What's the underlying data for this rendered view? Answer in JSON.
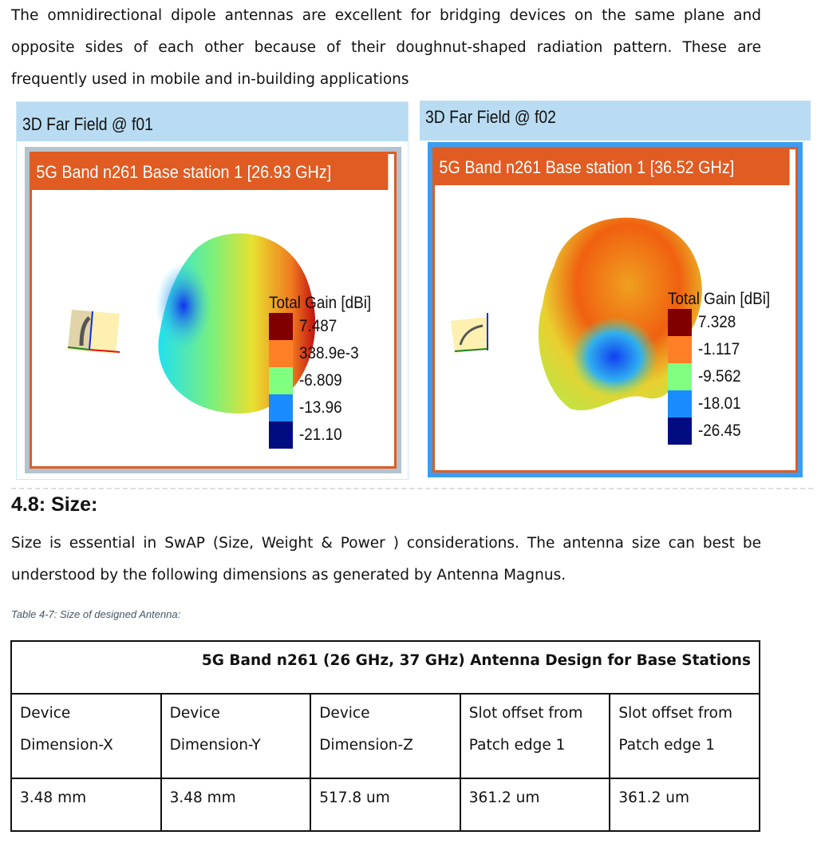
{
  "intro_paragraph": "The omnidirectional dipole antennas are excellent for bridging devices on the same plane and opposite sides of each other because of their doughnut-shaped radiation pattern. These are frequently used in mobile and in-building applications",
  "figures": [
    {
      "header": "3D Far Field @ f01",
      "title": "5G Band n261 Base station 1 [26.93 GHz]",
      "legend_title": "Total Gain [dBi]",
      "legend": [
        {
          "value": "7.487",
          "color": "#800000"
        },
        {
          "value": "338.9e-3",
          "color": "#ff7f27"
        },
        {
          "value": "-6.809",
          "color": "#80ff80"
        },
        {
          "value": "-13.96",
          "color": "#1a8cff"
        },
        {
          "value": "-21.10",
          "color": "#000c80"
        }
      ]
    },
    {
      "header": "3D Far Field @ f02",
      "title": "5G Band n261 Base station 1 [36.52 GHz]",
      "legend_title": "Total Gain [dBi]",
      "legend": [
        {
          "value": "7.328",
          "color": "#800000"
        },
        {
          "value": "-1.117",
          "color": "#ff7f27"
        },
        {
          "value": "-9.562",
          "color": "#80ff80"
        },
        {
          "value": "-18.01",
          "color": "#1a8cff"
        },
        {
          "value": "-26.45",
          "color": "#000c80"
        }
      ]
    }
  ],
  "section_heading": "4.8:  Size:",
  "size_paragraph": "Size is essential in SwAP (Size, Weight & Power ) considerations. The antenna size can best be understood by the following dimensions as generated by Antenna Magnus.",
  "table_caption": "Table 4-7: Size of designed Antenna:",
  "table": {
    "title": "5G Band n261 (26 GHz, 37 GHz) Antenna Design for Base Stations",
    "headers": [
      "Device Dimension-X",
      "Device Dimension-Y",
      "Device Dimension-Z",
      "Slot offset from Patch edge 1",
      "Slot offset from Patch edge 1"
    ],
    "values": [
      "3.48 mm",
      "3.48 mm",
      "517.8 um",
      "361.2 um",
      "361.2 um"
    ]
  }
}
